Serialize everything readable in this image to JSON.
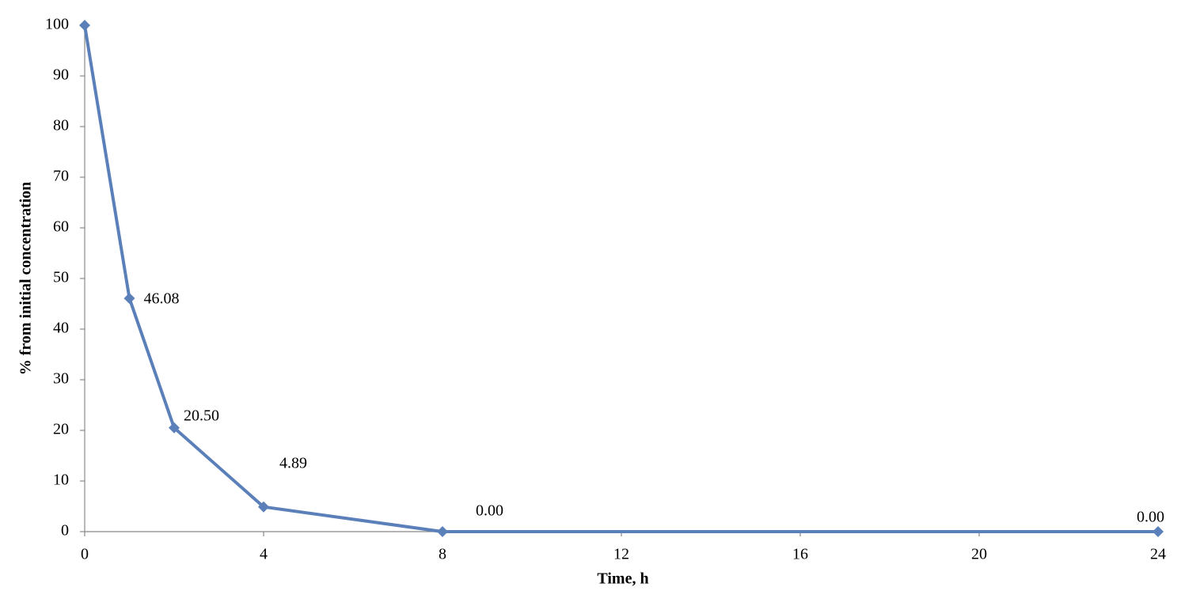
{
  "chart_data": {
    "type": "line",
    "x_label": "Time, h",
    "y_label": "% from initial concentration",
    "x": [
      0,
      1,
      2,
      4,
      8,
      24
    ],
    "series": [
      {
        "name": null,
        "color": "#5b80b9",
        "values": [
          100,
          46.08,
          20.5,
          4.89,
          0,
          0
        ],
        "value_labels": [
          null,
          "46.08",
          "20.50",
          "4.89",
          "0.00",
          "0.00"
        ]
      }
    ],
    "xlim": [
      0,
      24
    ],
    "xticks": [
      0,
      4,
      8,
      12,
      16,
      20,
      24
    ],
    "ylim": [
      0,
      100
    ],
    "yticks": [
      0,
      10,
      20,
      30,
      40,
      50,
      60,
      70,
      80,
      90,
      100
    ],
    "grid": false,
    "marker": "diamond"
  }
}
